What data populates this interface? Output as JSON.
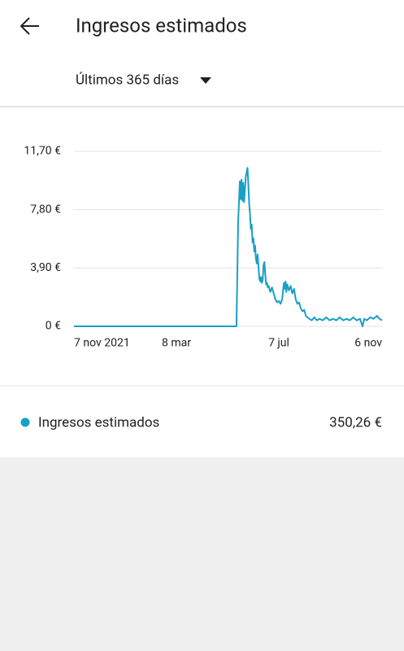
{
  "header": {
    "title": "Ingresos estimados"
  },
  "filter": {
    "label": "Últimos 365 días"
  },
  "chart_data": {
    "type": "line",
    "x": [
      0,
      192,
      194,
      196,
      197,
      198,
      199,
      200,
      201,
      203,
      205,
      206,
      207,
      208,
      209,
      210,
      211,
      212,
      213,
      214,
      215,
      216,
      217,
      218,
      219,
      220,
      221,
      222,
      223,
      224,
      225,
      226,
      227,
      228,
      229,
      230,
      232,
      234,
      236,
      238,
      240,
      242,
      244,
      246,
      248,
      249,
      250,
      251,
      252,
      254,
      256,
      258,
      260,
      262,
      264,
      266,
      268,
      270,
      272,
      274,
      276,
      278,
      281,
      284,
      287,
      290,
      294,
      298,
      302,
      306,
      310,
      314,
      318,
      322,
      326,
      330,
      334,
      338,
      341,
      343,
      346,
      350,
      354,
      358,
      361,
      364
    ],
    "series": [
      {
        "name": "Ingresos estimados",
        "color": "#1a9fc6",
        "values": [
          0,
          0,
          7,
          9.7,
          8.5,
          9.8,
          8.4,
          9.6,
          8.3,
          10,
          10.6,
          9.5,
          8.2,
          7.5,
          6.5,
          6.8,
          5.6,
          5.9,
          5,
          5.4,
          4.5,
          4.2,
          4.8,
          4,
          3.2,
          3,
          3.3,
          2.9,
          3.1,
          4.1,
          4.3,
          3.5,
          2.8,
          2.9,
          2.6,
          2.7,
          2.3,
          2.6,
          2.2,
          1.8,
          1.6,
          1.7,
          1.5,
          1.8,
          2.9,
          2.5,
          3,
          2.3,
          2.8,
          2.4,
          2.7,
          2.2,
          2.5,
          1.8,
          1.5,
          1.6,
          1.2,
          1,
          1.1,
          0.7,
          0.6,
          0.5,
          0.4,
          0.6,
          0.4,
          0.5,
          0.4,
          0.6,
          0.4,
          0.5,
          0.4,
          0.6,
          0.4,
          0.5,
          0.4,
          0.6,
          0.4,
          0.5,
          0,
          0.5,
          0.4,
          0.6,
          0.5,
          0.7,
          0.5,
          0.4
        ]
      }
    ],
    "xlim": [
      0,
      364
    ],
    "xticks": [
      {
        "value": 0,
        "label": "7 nov 2021"
      },
      {
        "value": 121,
        "label": "8 mar"
      },
      {
        "value": 242,
        "label": "7 jul"
      },
      {
        "value": 364,
        "label": "6 nov"
      }
    ],
    "ylim": [
      0,
      11.7
    ],
    "yticks": [
      {
        "value": 0,
        "label": "0 €"
      },
      {
        "value": 3.9,
        "label": "3,90 €"
      },
      {
        "value": 7.8,
        "label": "7,80 €"
      },
      {
        "value": 11.7,
        "label": "11,70 €"
      }
    ],
    "grid": true
  },
  "summary": {
    "value": "350,26 €"
  }
}
